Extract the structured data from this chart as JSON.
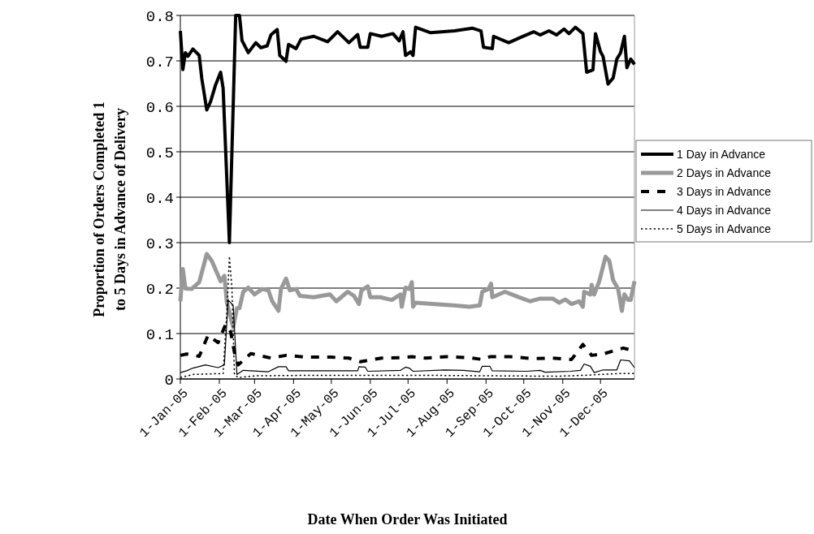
{
  "chart_data": {
    "type": "line",
    "xlabel": "Date When Order Was Initiated",
    "ylabel": "Proportion of Orders Completed 1 to 5 Days in Advance of Delivery",
    "xlim": [
      "2005-01-01",
      "2005-12-28"
    ],
    "xticks": [
      {
        "value": "2005-01-01",
        "label": "1-Jan-05"
      },
      {
        "value": "2005-02-01",
        "label": "1-Feb-05"
      },
      {
        "value": "2005-03-01",
        "label": "1-Mar-05"
      },
      {
        "value": "2005-04-01",
        "label": "1-Apr-05"
      },
      {
        "value": "2005-05-01",
        "label": "1-May-05"
      },
      {
        "value": "2005-06-01",
        "label": "1-Jun-05"
      },
      {
        "value": "2005-07-01",
        "label": "1-Jul-05"
      },
      {
        "value": "2005-08-01",
        "label": "1-Aug-05"
      },
      {
        "value": "2005-09-01",
        "label": "1-Sep-05"
      },
      {
        "value": "2005-10-01",
        "label": "1-Oct-05"
      },
      {
        "value": "2005-11-01",
        "label": "1-Nov-05"
      },
      {
        "value": "2005-12-01",
        "label": "1-Dec-05"
      }
    ],
    "ylim": [
      0,
      0.8
    ],
    "yticks": [
      0,
      0.1,
      0.2,
      0.3,
      0.4,
      0.5,
      0.6,
      0.7,
      0.8
    ],
    "grid": "y",
    "legend": "right",
    "marker": "none",
    "series": [
      {
        "name": "1 Day in Advance",
        "color": "#000000",
        "line_style": "solid",
        "x": [
          "2005-01-01",
          "2005-01-03",
          "2005-01-05",
          "2005-01-07",
          "2005-01-11",
          "2005-01-16",
          "2005-01-18",
          "2005-01-22",
          "2005-01-25",
          "2005-01-29",
          "2005-02-02",
          "2005-02-04",
          "2005-02-09",
          "2005-02-14",
          "2005-02-17",
          "2005-02-19",
          "2005-02-24",
          "2005-03-02",
          "2005-03-06",
          "2005-03-11",
          "2005-03-14",
          "2005-03-19",
          "2005-03-21",
          "2005-03-26",
          "2005-03-28",
          "2005-04-03",
          "2005-04-07",
          "2005-04-17",
          "2005-04-28",
          "2005-05-06",
          "2005-05-15",
          "2005-05-22",
          "2005-05-24",
          "2005-05-30",
          "2005-06-01",
          "2005-06-10",
          "2005-06-19",
          "2005-06-24",
          "2005-06-27",
          "2005-06-29",
          "2005-07-03",
          "2005-07-05",
          "2005-07-07",
          "2005-07-19",
          "2005-08-07",
          "2005-08-21",
          "2005-08-28",
          "2005-08-30",
          "2005-09-06",
          "2005-09-07",
          "2005-09-19",
          "2005-09-28",
          "2005-10-09",
          "2005-10-14",
          "2005-10-21",
          "2005-10-27",
          "2005-11-02",
          "2005-11-06",
          "2005-11-11",
          "2005-11-17",
          "2005-11-20",
          "2005-11-25",
          "2005-11-27",
          "2005-12-01",
          "2005-12-03",
          "2005-12-07",
          "2005-12-11",
          "2005-12-14",
          "2005-12-17",
          "2005-12-20",
          "2005-12-22",
          "2005-12-25",
          "2005-12-28"
        ],
        "values": [
          0.766,
          0.681,
          0.718,
          0.71,
          0.726,
          0.712,
          0.662,
          0.592,
          0.61,
          0.647,
          0.675,
          0.64,
          0.3,
          0.8,
          0.8,
          0.745,
          0.718,
          0.74,
          0.729,
          0.733,
          0.757,
          0.769,
          0.712,
          0.699,
          0.736,
          0.727,
          0.748,
          0.754,
          0.742,
          0.764,
          0.74,
          0.758,
          0.73,
          0.73,
          0.76,
          0.754,
          0.76,
          0.744,
          0.764,
          0.712,
          0.72,
          0.712,
          0.774,
          0.762,
          0.766,
          0.772,
          0.766,
          0.73,
          0.727,
          0.754,
          0.74,
          0.751,
          0.764,
          0.757,
          0.766,
          0.757,
          0.77,
          0.76,
          0.774,
          0.76,
          0.675,
          0.68,
          0.76,
          0.72,
          0.71,
          0.649,
          0.662,
          0.704,
          0.718,
          0.754,
          0.685,
          0.704,
          0.692
        ]
      },
      {
        "name": "2 Days in Advance",
        "color": "#999999",
        "line_style": "solid",
        "x": [
          "2005-01-01",
          "2005-01-03",
          "2005-01-05",
          "2005-01-10",
          "2005-01-16",
          "2005-01-22",
          "2005-01-26",
          "2005-02-02",
          "2005-02-05",
          "2005-02-07",
          "2005-02-12",
          "2005-02-15",
          "2005-02-17",
          "2005-02-20",
          "2005-02-24",
          "2005-03-01",
          "2005-03-07",
          "2005-03-12",
          "2005-03-15",
          "2005-03-20",
          "2005-03-22",
          "2005-03-26",
          "2005-03-29",
          "2005-04-03",
          "2005-04-06",
          "2005-04-17",
          "2005-04-30",
          "2005-05-05",
          "2005-05-14",
          "2005-05-19",
          "2005-05-23",
          "2005-05-25",
          "2005-05-30",
          "2005-06-01",
          "2005-06-09",
          "2005-06-18",
          "2005-06-25",
          "2005-06-26",
          "2005-06-29",
          "2005-07-02",
          "2005-07-04",
          "2005-07-05",
          "2005-07-07",
          "2005-07-20",
          "2005-08-06",
          "2005-08-19",
          "2005-08-27",
          "2005-08-29",
          "2005-09-03",
          "2005-09-05",
          "2005-09-06",
          "2005-09-16",
          "2005-09-27",
          "2005-10-06",
          "2005-10-14",
          "2005-10-24",
          "2005-10-29",
          "2005-11-03",
          "2005-11-08",
          "2005-11-14",
          "2005-11-17",
          "2005-11-18",
          "2005-11-23",
          "2005-11-24",
          "2005-11-26",
          "2005-11-30",
          "2005-12-05",
          "2005-12-08",
          "2005-12-11",
          "2005-12-15",
          "2005-12-18",
          "2005-12-20",
          "2005-12-23",
          "2005-12-25",
          "2005-12-28"
        ],
        "values": [
          0.171,
          0.242,
          0.199,
          0.198,
          0.213,
          0.275,
          0.26,
          0.215,
          0.227,
          0.168,
          0.114,
          0.156,
          0.156,
          0.192,
          0.201,
          0.186,
          0.198,
          0.195,
          0.171,
          0.15,
          0.198,
          0.221,
          0.195,
          0.198,
          0.183,
          0.18,
          0.186,
          0.171,
          0.192,
          0.183,
          0.165,
          0.195,
          0.204,
          0.18,
          0.18,
          0.174,
          0.186,
          0.159,
          0.201,
          0.198,
          0.213,
          0.159,
          0.168,
          0.165,
          0.162,
          0.159,
          0.162,
          0.192,
          0.198,
          0.21,
          0.18,
          0.192,
          0.18,
          0.171,
          0.177,
          0.177,
          0.168,
          0.175,
          0.165,
          0.171,
          0.159,
          0.192,
          0.186,
          0.207,
          0.186,
          0.215,
          0.269,
          0.26,
          0.218,
          0.198,
          0.15,
          0.186,
          0.174,
          0.174,
          0.215
        ]
      },
      {
        "name": "3 Days in Advance",
        "color": "#000000",
        "line_style": "dashed",
        "x": [
          "2005-01-01",
          "2005-01-06",
          "2005-01-16",
          "2005-01-23",
          "2005-01-31",
          "2005-02-06",
          "2005-02-10",
          "2005-02-13",
          "2005-02-16",
          "2005-02-26",
          "2005-03-14",
          "2005-03-26",
          "2005-04-11",
          "2005-05-01",
          "2005-05-15",
          "2005-05-24",
          "2005-06-10",
          "2005-06-25",
          "2005-07-04",
          "2005-07-15",
          "2005-08-01",
          "2005-08-18",
          "2005-08-29",
          "2005-09-04",
          "2005-09-20",
          "2005-10-08",
          "2005-10-24",
          "2005-11-08",
          "2005-11-17",
          "2005-11-24",
          "2005-12-03",
          "2005-12-19",
          "2005-12-28"
        ],
        "values": [
          0.052,
          0.055,
          0.05,
          0.096,
          0.08,
          0.12,
          0.104,
          0.058,
          0.031,
          0.056,
          0.046,
          0.052,
          0.048,
          0.048,
          0.046,
          0.038,
          0.046,
          0.047,
          0.049,
          0.046,
          0.049,
          0.047,
          0.043,
          0.049,
          0.049,
          0.045,
          0.046,
          0.043,
          0.076,
          0.052,
          0.055,
          0.068,
          0.062
        ]
      },
      {
        "name": "4 Days in Advance",
        "color": "#000000",
        "line_style": "solid",
        "x": [
          "2005-01-01",
          "2005-01-06",
          "2005-01-11",
          "2005-01-21",
          "2005-01-31",
          "2005-02-05",
          "2005-02-08",
          "2005-02-12",
          "2005-02-15",
          "2005-02-20",
          "2005-03-12",
          "2005-03-20",
          "2005-03-26",
          "2005-03-28",
          "2005-05-01",
          "2005-05-22",
          "2005-05-23",
          "2005-05-28",
          "2005-05-30",
          "2005-06-25",
          "2005-06-29",
          "2005-07-02",
          "2005-07-05",
          "2005-07-30",
          "2005-08-14",
          "2005-08-27",
          "2005-08-29",
          "2005-09-04",
          "2005-09-06",
          "2005-10-03",
          "2005-10-14",
          "2005-10-18",
          "2005-11-07",
          "2005-11-15",
          "2005-11-18",
          "2005-11-23",
          "2005-11-26",
          "2005-12-03",
          "2005-12-14",
          "2005-12-17",
          "2005-12-24",
          "2005-12-28"
        ],
        "values": [
          0.014,
          0.018,
          0.024,
          0.031,
          0.025,
          0.031,
          0.174,
          0.162,
          0.01,
          0.019,
          0.016,
          0.027,
          0.027,
          0.018,
          0.018,
          0.018,
          0.027,
          0.026,
          0.017,
          0.019,
          0.026,
          0.024,
          0.017,
          0.02,
          0.019,
          0.016,
          0.028,
          0.028,
          0.018,
          0.017,
          0.019,
          0.015,
          0.017,
          0.019,
          0.033,
          0.028,
          0.014,
          0.02,
          0.02,
          0.042,
          0.04,
          0.025
        ]
      },
      {
        "name": "5 Days in Advance",
        "color": "#000000",
        "line_style": "dotted",
        "x": [
          "2005-01-01",
          "2005-01-11",
          "2005-02-04",
          "2005-02-07",
          "2005-02-09",
          "2005-02-11",
          "2005-02-13",
          "2005-02-16",
          "2005-03-02",
          "2005-04-11",
          "2005-05-31",
          "2005-07-20",
          "2005-09-08",
          "2005-10-28",
          "2005-11-17",
          "2005-12-02",
          "2005-12-17",
          "2005-12-28"
        ],
        "values": [
          0.003,
          0.01,
          0.012,
          0.15,
          0.27,
          0.2,
          0.01,
          0.003,
          0.007,
          0.008,
          0.008,
          0.008,
          0.007,
          0.006,
          0.008,
          0.01,
          0.012,
          0.012
        ]
      }
    ]
  }
}
